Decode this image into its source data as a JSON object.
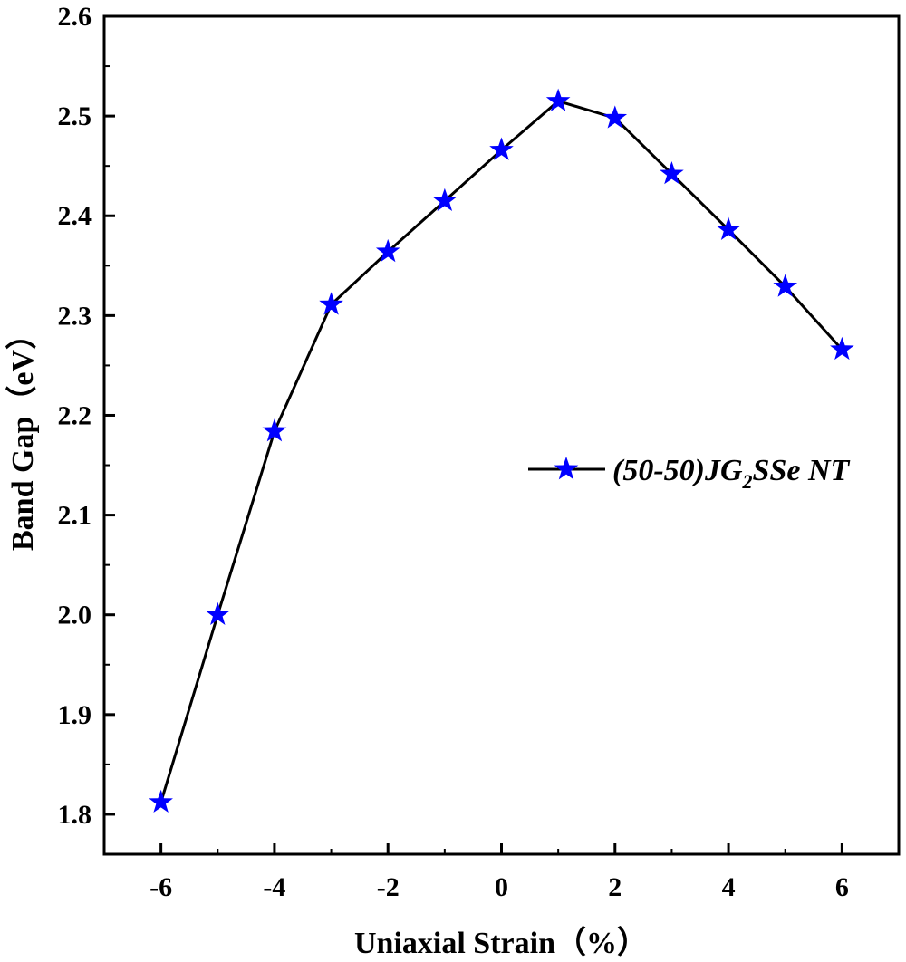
{
  "chart_data": {
    "type": "line",
    "xlabel": "Uniaxial Strain（%）",
    "ylabel": "Band Gap（eV）",
    "xlim": [
      -7,
      7
    ],
    "ylim": [
      1.76,
      2.6
    ],
    "xticks": [
      -6,
      -4,
      -2,
      0,
      2,
      4,
      6
    ],
    "yticks": [
      1.8,
      1.9,
      2.0,
      2.1,
      2.2,
      2.3,
      2.4,
      2.5,
      2.6
    ],
    "xtick_labels": [
      "-6",
      "-4",
      "-2",
      "0",
      "2",
      "4",
      "6"
    ],
    "ytick_labels": [
      "1.8",
      "1.9",
      "2.0",
      "2.1",
      "2.2",
      "2.3",
      "2.4",
      "2.5",
      "2.6"
    ],
    "grid": false,
    "legend_position": "right",
    "series": [
      {
        "name_prefix": "(50-50)JG",
        "name_subscript": "2",
        "name_suffix": "SSe NT",
        "line_color": "#000000",
        "marker": "star",
        "marker_color": "#0000ff",
        "x": [
          -6,
          -5,
          -4,
          -3,
          -2,
          -1,
          0,
          1,
          2,
          3,
          4,
          5,
          6
        ],
        "y": [
          1.812,
          2.0,
          2.184,
          2.311,
          2.364,
          2.415,
          2.466,
          2.515,
          2.498,
          2.442,
          2.386,
          2.329,
          2.266
        ]
      }
    ]
  }
}
